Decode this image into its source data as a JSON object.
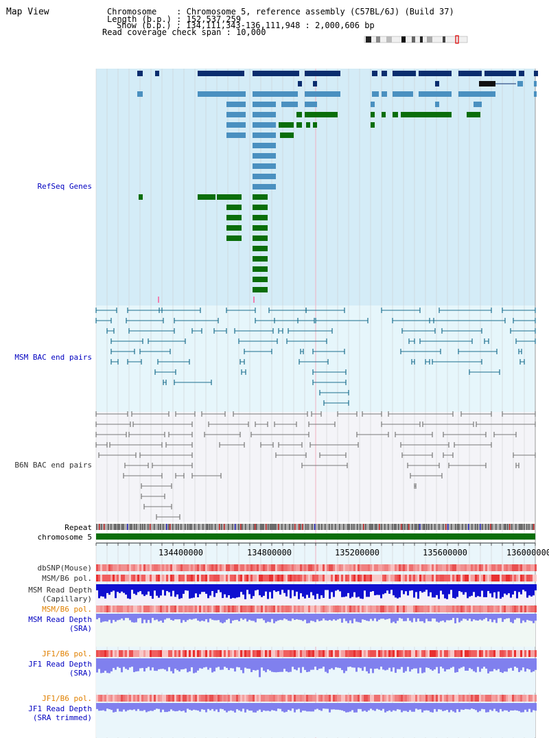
{
  "title": "Map View",
  "info": {
    "chromosome_line": "Chromosome    : Chromosome 5, reference assembly (C57BL/6J) (Build 37)",
    "length_line": "Length (b.p.) : 152,537,259",
    "show_line": "Show (b.p.) : 134,111,343-136,111,948 : 2,000,606 bp",
    "coverage_line": "Read coverage check span : 10,000"
  },
  "tracks": {
    "refseq": "RefSeq Genes",
    "msm_bac": "MSM BAC end pairs",
    "b6n_bac": "B6N BAC end pairs",
    "repeat": "Repeat",
    "chromosome": "chromosome 5",
    "dbsnp": "dbSNP(Mouse)",
    "msm_b6_pol": "MSM/B6 pol.",
    "msm_read_depth_cap": "MSM Read Depth\n(Capillary)",
    "msm_b6_pol_sra": "MSM/B6 pol.",
    "msm_read_depth_sra": "MSM Read Depth\n(SRA)",
    "jf1_b6_pol": "JF1/B6 pol.",
    "jf1_read_depth_sra": "JF1 Read Depth\n(SRA)",
    "jf1_b6_pol_trim": "JF1/B6 pol.",
    "jf1_read_depth_trim": "JF1 Read Depth\n(SRA trimmed)"
  },
  "ruler_ticks": [
    "134400000",
    "134800000",
    "135200000",
    "135600000",
    "136000000"
  ],
  "colors": {
    "refseq_dark": "#0a2d6e",
    "refseq_light": "#4a90c0",
    "refseq_green": "#0a6e0a",
    "refseq_bg": "#d4ecf7",
    "msm_bac": "#1a6e8e",
    "msm_bg": "#e6f6fb",
    "b6n_bac": "#777777",
    "b6n_bg": "#f4f4f8",
    "chromosome_bar": "#0a6e0a",
    "depth_capillary": "#1010d0",
    "depth_sra": "#8080ee"
  }
}
